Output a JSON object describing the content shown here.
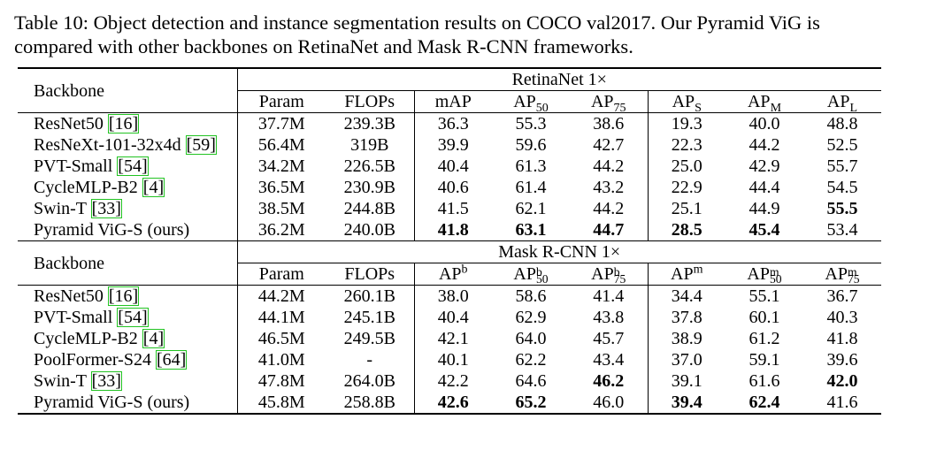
{
  "caption": {
    "line1": "Table 10: Object detection and instance segmentation results on COCO val2017. Our Pyramid ViG is",
    "line2": "compared with other backbones on RetinaNet and Mask R-CNN frameworks."
  },
  "retinanet": {
    "backbone_header": "Backbone",
    "group_header": "RetinaNet 1×",
    "cols": {
      "param": "Param",
      "flops": "FLOPs",
      "map": "mAP",
      "ap": "AP",
      "ap50_sub": "50",
      "ap75_sub": "75",
      "aps_sub": "S",
      "apm_sub": "M",
      "apl_sub": "L"
    },
    "rows": [
      {
        "name": "ResNet50 ",
        "ref": "[16]",
        "param": "37.7M",
        "flops": "239.3B",
        "map": "36.3",
        "ap50": "55.3",
        "ap75": "38.6",
        "aps": "19.3",
        "apm": "40.0",
        "apl": "48.8"
      },
      {
        "name": "ResNeXt-101-32x4d ",
        "ref": "[59]",
        "param": "56.4M",
        "flops": "319B",
        "map": "39.9",
        "ap50": "59.6",
        "ap75": "42.7",
        "aps": "22.3",
        "apm": "44.2",
        "apl": "52.5"
      },
      {
        "name": "PVT-Small ",
        "ref": "[54]",
        "param": "34.2M",
        "flops": "226.5B",
        "map": "40.4",
        "ap50": "61.3",
        "ap75": "44.2",
        "aps": "25.0",
        "apm": "42.9",
        "apl": "55.7"
      },
      {
        "name": "CycleMLP-B2 ",
        "ref": "[4]",
        "param": "36.5M",
        "flops": "230.9B",
        "map": "40.6",
        "ap50": "61.4",
        "ap75": "43.2",
        "aps": "22.9",
        "apm": "44.4",
        "apl": "54.5"
      },
      {
        "name": "Swin-T ",
        "ref": "[33]",
        "param": "38.5M",
        "flops": "244.8B",
        "map": "41.5",
        "ap50": "62.1",
        "ap75": "44.2",
        "aps": "25.1",
        "apm": "44.9",
        "apl": "55.5"
      },
      {
        "name": "Pyramid ViG-S (ours)",
        "ref": "",
        "param": "36.2M",
        "flops": "240.0B",
        "map": "41.8",
        "ap50": "63.1",
        "ap75": "44.7",
        "aps": "28.5",
        "apm": "45.4",
        "apl": "53.4"
      }
    ]
  },
  "maskrcnn": {
    "backbone_header": "Backbone",
    "group_header": "Mask R-CNN 1×",
    "cols": {
      "param": "Param",
      "flops": "FLOPs",
      "ap": "AP",
      "b": "b",
      "m": "m",
      "s50": "50",
      "s75": "75"
    },
    "rows": [
      {
        "name": "ResNet50 ",
        "ref": "[16]",
        "param": "44.2M",
        "flops": "260.1B",
        "apb": "38.0",
        "apb50": "58.6",
        "apb75": "41.4",
        "apm": "34.4",
        "apm50": "55.1",
        "apm75": "36.7"
      },
      {
        "name": "PVT-Small ",
        "ref": "[54]",
        "param": "44.1M",
        "flops": "245.1B",
        "apb": "40.4",
        "apb50": "62.9",
        "apb75": "43.8",
        "apm": "37.8",
        "apm50": "60.1",
        "apm75": "40.3"
      },
      {
        "name": "CycleMLP-B2 ",
        "ref": "[4]",
        "param": "46.5M",
        "flops": "249.5B",
        "apb": "42.1",
        "apb50": "64.0",
        "apb75": "45.7",
        "apm": "38.9",
        "apm50": "61.2",
        "apm75": "41.8"
      },
      {
        "name": "PoolFormer-S24 ",
        "ref": "[64]",
        "param": "41.0M",
        "flops": "-",
        "apb": "40.1",
        "apb50": "62.2",
        "apb75": "43.4",
        "apm": "37.0",
        "apm50": "59.1",
        "apm75": "39.6"
      },
      {
        "name": "Swin-T ",
        "ref": "[33]",
        "param": "47.8M",
        "flops": "264.0B",
        "apb": "42.2",
        "apb50": "64.6",
        "apb75": "46.2",
        "apm": "39.1",
        "apm50": "61.6",
        "apm75": "42.0"
      },
      {
        "name": "Pyramid ViG-S (ours)",
        "ref": "",
        "param": "45.8M",
        "flops": "258.8B",
        "apb": "42.6",
        "apb50": "65.2",
        "apb75": "46.0",
        "apm": "39.4",
        "apm50": "62.4",
        "apm75": "41.6"
      }
    ]
  }
}
